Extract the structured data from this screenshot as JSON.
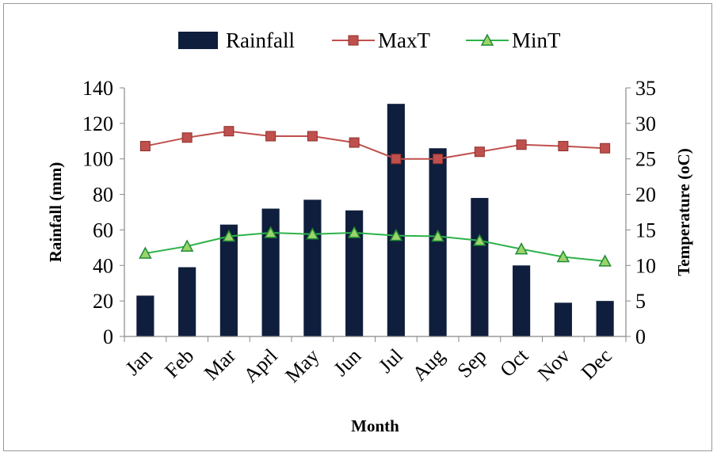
{
  "chart_data": {
    "type": "bar",
    "categories": [
      "Jan",
      "Feb",
      "Mar",
      "Aprl",
      "May",
      "Jun",
      "Jul",
      "Aug",
      "Sep",
      "Oct",
      "Nov",
      "Dec"
    ],
    "series": [
      {
        "name": "Rainfall",
        "type": "bar",
        "axis": "left",
        "color": "#0f1e3c",
        "values": [
          23,
          39,
          63,
          72,
          77,
          71,
          131,
          106,
          78,
          40,
          19,
          20
        ]
      },
      {
        "name": "MaxT",
        "type": "line",
        "axis": "right",
        "color": "#c0504d",
        "marker": "square",
        "values": [
          26.8,
          28,
          28.9,
          28.2,
          28.2,
          27.3,
          25,
          25,
          26,
          27,
          26.8,
          26.5
        ]
      },
      {
        "name": "MinT",
        "type": "line",
        "axis": "right",
        "color": "#2db34a",
        "marker": "triangle",
        "values": [
          11.7,
          12.7,
          14.1,
          14.6,
          14.4,
          14.6,
          14.2,
          14.1,
          13.5,
          12.3,
          11.2,
          10.6
        ]
      }
    ],
    "xlabel": "Month",
    "ylabel": "Rainfall (mm)",
    "y2label": "Temperature (oC)",
    "ylim": [
      0,
      140
    ],
    "y2lim": [
      0,
      35
    ],
    "yticks": [
      "0",
      "20",
      "40",
      "60",
      "80",
      "100",
      "120",
      "140"
    ],
    "y2ticks": [
      "0",
      "5",
      "10",
      "15",
      "20",
      "25",
      "30",
      "35"
    ],
    "grid": false,
    "legend": "top-center"
  }
}
